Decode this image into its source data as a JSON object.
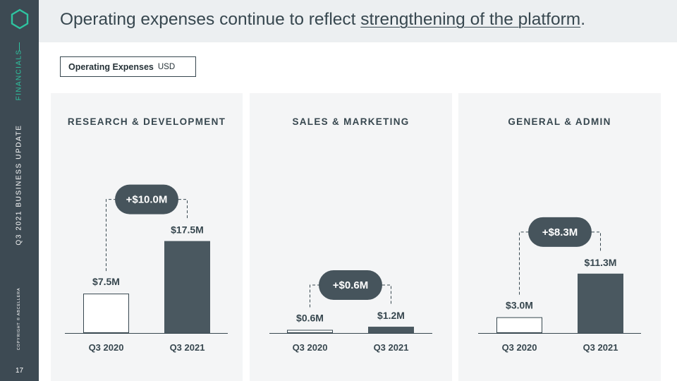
{
  "sidebar": {
    "section_label": "FINANCIALS",
    "deck_title": "Q3 2021 BUSINESS UPDATE",
    "copyright": "COPYRIGHT © ABCELLERA",
    "page_number": "17",
    "accent_color": "#2ec4a0"
  },
  "header": {
    "title_prefix": "Operating expenses continue to reflect ",
    "title_emphasis": "strengthening of the platform",
    "title_suffix": "."
  },
  "legend": {
    "label": "Operating Expenses",
    "unit": "USD"
  },
  "colors": {
    "bar_current": "#4a5860",
    "bar_prior_fill": "#ffffff",
    "bar_outline": "#37474f",
    "badge": "#46545c"
  },
  "chart_data": [
    {
      "type": "bar",
      "title": "RESEARCH & DEVELOPMENT",
      "categories": [
        "Q3 2020",
        "Q3 2021"
      ],
      "values": [
        7.5,
        17.5
      ],
      "value_labels": [
        "$7.5M",
        "$17.5M"
      ],
      "change_label": "+$10.0M",
      "unit": "USD millions"
    },
    {
      "type": "bar",
      "title": "SALES & MARKETING",
      "categories": [
        "Q3 2020",
        "Q3 2021"
      ],
      "values": [
        0.6,
        1.2
      ],
      "value_labels": [
        "$0.6M",
        "$1.2M"
      ],
      "change_label": "+$0.6M",
      "unit": "USD millions"
    },
    {
      "type": "bar",
      "title": "GENERAL & ADMIN",
      "categories": [
        "Q3 2020",
        "Q3 2021"
      ],
      "values": [
        3.0,
        11.3
      ],
      "value_labels": [
        "$3.0M",
        "$11.3M"
      ],
      "change_label": "+$8.3M",
      "unit": "USD millions"
    }
  ]
}
